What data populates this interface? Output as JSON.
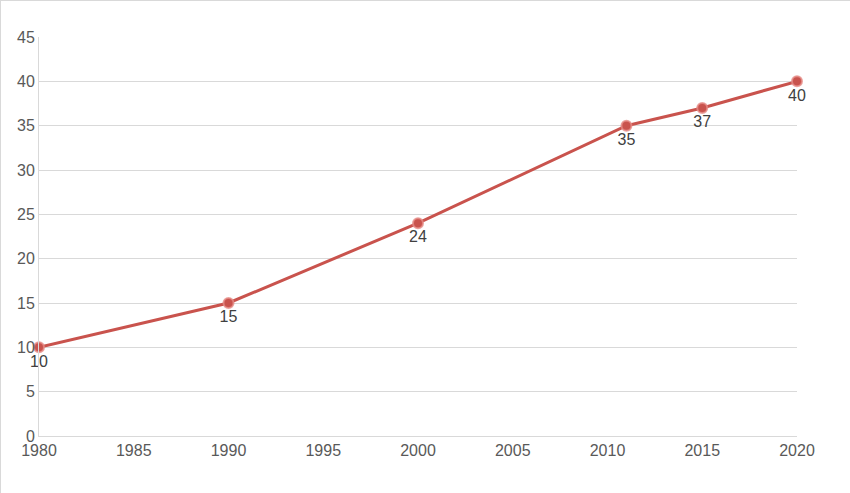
{
  "chart_data": {
    "type": "line",
    "x": [
      1980,
      1990,
      2000,
      2011,
      2015,
      2020
    ],
    "values": [
      10,
      15,
      24,
      35,
      37,
      40
    ],
    "color": "#c9534d",
    "marker": "circle",
    "xlim": [
      1980,
      2020
    ],
    "xticks": [
      1980,
      1985,
      1990,
      1995,
      2000,
      2005,
      2010,
      2015,
      2020
    ],
    "ylim": [
      0,
      45
    ],
    "yticks": [
      0,
      5,
      10,
      15,
      20,
      25,
      30,
      35,
      40,
      45
    ],
    "grid": true,
    "data_labels": true
  }
}
